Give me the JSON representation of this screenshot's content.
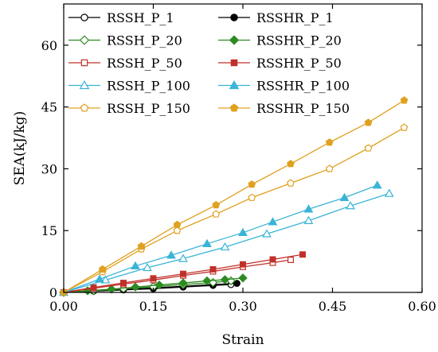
{
  "chart_data": {
    "type": "line",
    "title": "",
    "xlabel": "Strain",
    "ylabel": "SEA(kJ/kg)",
    "xlim": [
      0,
      0.6
    ],
    "ylim": [
      0,
      70
    ],
    "xticks": [
      0.0,
      0.15,
      0.3,
      0.45,
      0.6
    ],
    "xtick_labels": [
      "0.00",
      "0.15",
      "0.30",
      "0.45",
      "0.60"
    ],
    "yticks": [
      0,
      15,
      30,
      45,
      60
    ],
    "ytick_labels": [
      "0",
      "15",
      "30",
      "45",
      "60"
    ],
    "grid": false,
    "legend_position": "top-left",
    "series": [
      {
        "name": "RSSH_P_1",
        "color": "#000000",
        "marker": "circle",
        "filled": false,
        "x": [
          0.0,
          0.05,
          0.1,
          0.15,
          0.2,
          0.25,
          0.28
        ],
        "y": [
          0.0,
          0.3,
          0.6,
          0.9,
          1.3,
          1.7,
          1.9
        ]
      },
      {
        "name": "RSSHR_P_1",
        "color": "#000000",
        "marker": "circle",
        "filled": true,
        "x": [
          0.0,
          0.05,
          0.1,
          0.15,
          0.2,
          0.25,
          0.29
        ],
        "y": [
          0.0,
          0.35,
          0.7,
          1.1,
          1.5,
          1.9,
          2.2
        ]
      },
      {
        "name": "RSSH_P_20",
        "color": "#2e8b22",
        "marker": "diamond",
        "filled": false,
        "x": [
          0.0,
          0.05,
          0.1,
          0.15,
          0.2,
          0.25,
          0.28
        ],
        "y": [
          0.0,
          0.4,
          0.9,
          1.4,
          1.9,
          2.4,
          2.8
        ]
      },
      {
        "name": "RSSHR_P_20",
        "color": "#2e8b22",
        "marker": "diamond",
        "filled": true,
        "x": [
          0.0,
          0.04,
          0.08,
          0.12,
          0.16,
          0.2,
          0.24,
          0.27,
          0.3
        ],
        "y": [
          0.0,
          0.4,
          0.8,
          1.3,
          1.8,
          2.3,
          2.8,
          3.1,
          3.5
        ]
      },
      {
        "name": "RSSH_P_50",
        "color": "#c0302a",
        "marker": "square",
        "filled": false,
        "x": [
          0.0,
          0.05,
          0.1,
          0.15,
          0.2,
          0.25,
          0.3,
          0.35,
          0.38
        ],
        "y": [
          0.0,
          1.0,
          2.0,
          3.0,
          4.1,
          5.1,
          6.2,
          7.2,
          7.9
        ]
      },
      {
        "name": "RSSHR_P_50",
        "color": "#c0302a",
        "marker": "square",
        "filled": true,
        "x": [
          0.0,
          0.05,
          0.1,
          0.15,
          0.2,
          0.25,
          0.3,
          0.35,
          0.4
        ],
        "y": [
          0.0,
          1.2,
          2.3,
          3.4,
          4.5,
          5.6,
          6.8,
          8.0,
          9.2
        ]
      },
      {
        "name": "RSSH_P_100",
        "color": "#39b4d6",
        "marker": "triangle",
        "filled": false,
        "x": [
          0.0,
          0.07,
          0.14,
          0.2,
          0.27,
          0.34,
          0.41,
          0.48,
          0.545
        ],
        "y": [
          0.0,
          3.0,
          6.0,
          8.2,
          11.0,
          14.2,
          17.4,
          21.0,
          24.0
        ]
      },
      {
        "name": "RSSHR_P_100",
        "color": "#39b4d6",
        "marker": "triangle",
        "filled": true,
        "x": [
          0.0,
          0.06,
          0.12,
          0.18,
          0.24,
          0.3,
          0.35,
          0.41,
          0.47,
          0.525
        ],
        "y": [
          0.0,
          3.2,
          6.4,
          9.0,
          11.8,
          14.5,
          17.1,
          20.2,
          23.0,
          26.0
        ]
      },
      {
        "name": "RSSH_P_150",
        "color": "#e0a020",
        "marker": "pentagon",
        "filled": false,
        "x": [
          0.0,
          0.065,
          0.13,
          0.19,
          0.255,
          0.315,
          0.38,
          0.445,
          0.51,
          0.57
        ],
        "y": [
          0.0,
          5.0,
          10.5,
          15.0,
          19.0,
          23.0,
          26.5,
          30.0,
          35.0,
          40.0
        ]
      },
      {
        "name": "RSSHR_P_150",
        "color": "#e0a020",
        "marker": "pentagon",
        "filled": true,
        "x": [
          0.0,
          0.065,
          0.13,
          0.19,
          0.255,
          0.315,
          0.38,
          0.445,
          0.51,
          0.57
        ],
        "y": [
          0.0,
          5.6,
          11.2,
          16.4,
          21.2,
          26.2,
          31.2,
          36.4,
          41.2,
          46.6
        ]
      }
    ],
    "legend_order": [
      [
        "RSSH_P_1",
        "RSSHR_P_1"
      ],
      [
        "RSSH_P_20",
        "RSSHR_P_20"
      ],
      [
        "RSSH_P_50",
        "RSSHR_P_50"
      ],
      [
        "RSSH_P_100",
        "RSSHR_P_100"
      ],
      [
        "RSSH_P_150",
        "RSSHR_P_150"
      ]
    ]
  }
}
